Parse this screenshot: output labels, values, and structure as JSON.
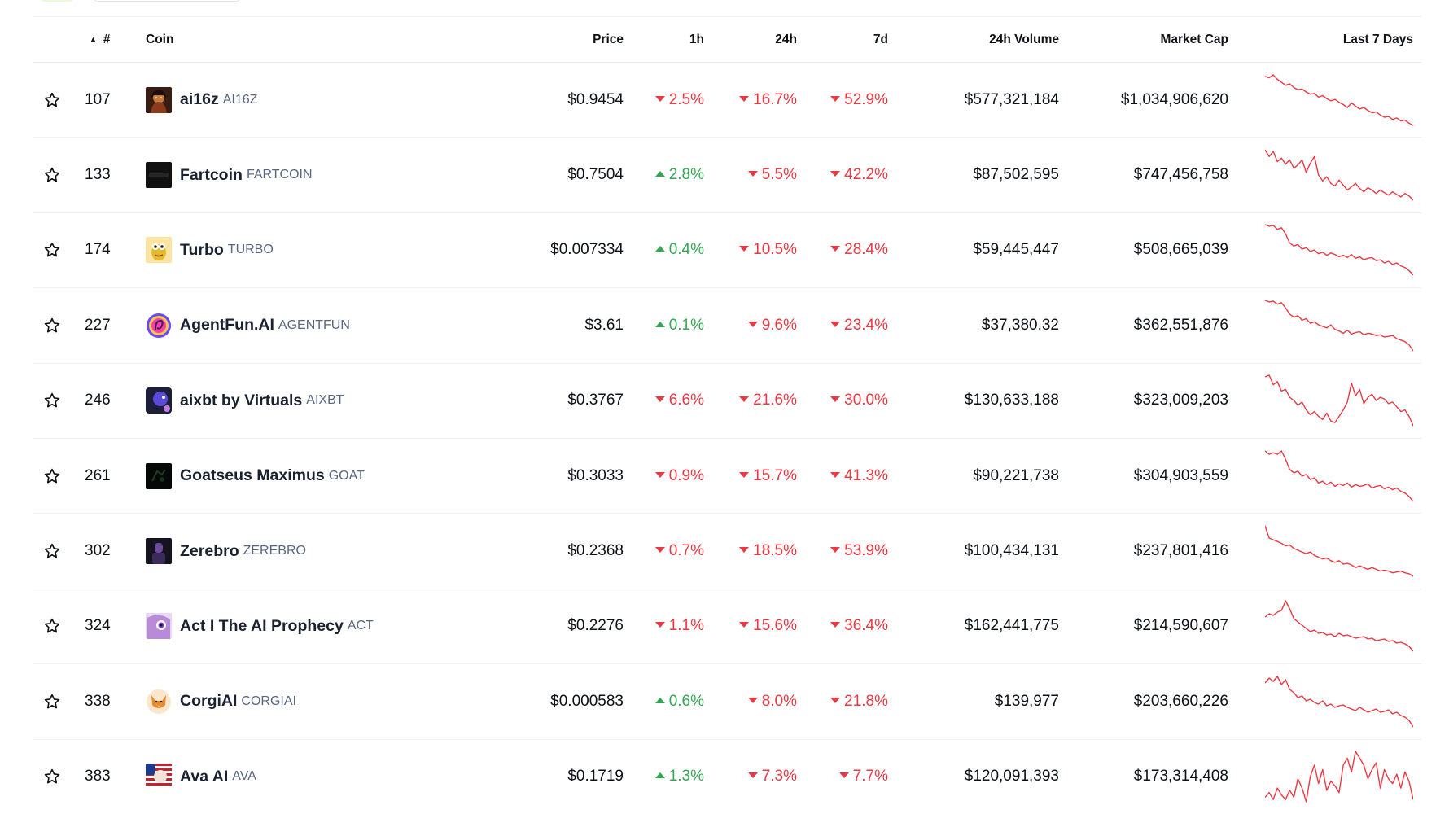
{
  "table": {
    "headers": {
      "rank": "#",
      "coin": "Coin",
      "price": "Price",
      "h1": "1h",
      "h24": "24h",
      "d7": "7d",
      "volume": "24h Volume",
      "market_cap": "Market Cap",
      "spark": "Last 7 Days"
    },
    "rows": [
      {
        "rank": "107",
        "name": "ai16z",
        "symbol": "AI16Z",
        "price": "$0.9454",
        "h1": "2.5%",
        "h1_dir": "down",
        "h24": "16.7%",
        "h24_dir": "down",
        "d7": "52.9%",
        "d7_dir": "down",
        "volume": "$577,321,184",
        "market_cap": "$1,034,906,620",
        "logo_icon": "ai16z-logo-icon",
        "spark": [
          62,
          64,
          60,
          66,
          70,
          74,
          72,
          77,
          80,
          79,
          83,
          86,
          85,
          90,
          88,
          92,
          95,
          93,
          97,
          100,
          104,
          98,
          102,
          106,
          104,
          108,
          111,
          110,
          114,
          117,
          116,
          120,
          118,
          122,
          121,
          125,
          128
        ]
      },
      {
        "rank": "133",
        "name": "Fartcoin",
        "symbol": "FARTCOIN",
        "price": "$0.7504",
        "h1": "2.8%",
        "h1_dir": "up",
        "h24": "5.5%",
        "h24_dir": "down",
        "d7": "42.2%",
        "d7_dir": "down",
        "volume": "$87,502,595",
        "market_cap": "$747,456,758",
        "logo_icon": "fartcoin-logo-icon",
        "spark": [
          58,
          66,
          60,
          72,
          68,
          75,
          70,
          80,
          76,
          70,
          85,
          74,
          66,
          88,
          95,
          90,
          98,
          101,
          94,
          100,
          106,
          102,
          98,
          104,
          108,
          103,
          106,
          110,
          106,
          109,
          112,
          108,
          111,
          114,
          110,
          113,
          118
        ]
      },
      {
        "rank": "174",
        "name": "Turbo",
        "symbol": "TURBO",
        "price": "$0.007334",
        "h1": "0.4%",
        "h1_dir": "up",
        "h24": "10.5%",
        "h24_dir": "down",
        "d7": "28.4%",
        "d7_dir": "down",
        "volume": "$59,445,447",
        "market_cap": "$508,665,039",
        "logo_icon": "turbo-logo-icon",
        "spark": [
          60,
          62,
          61,
          66,
          64,
          72,
          84,
          88,
          86,
          92,
          90,
          95,
          93,
          98,
          96,
          100,
          97,
          99,
          102,
          100,
          103,
          99,
          104,
          102,
          106,
          104,
          103,
          107,
          106,
          110,
          108,
          112,
          110,
          114,
          116,
          120,
          126
        ]
      },
      {
        "rank": "227",
        "name": "AgentFun.AI",
        "symbol": "AGENTFUN",
        "price": "$3.61",
        "h1": "0.1%",
        "h1_dir": "up",
        "h24": "9.6%",
        "h24_dir": "down",
        "d7": "23.4%",
        "d7_dir": "down",
        "volume": "$37,380.32",
        "market_cap": "$362,551,876",
        "logo_icon": "agentfun-logo-icon",
        "spark": [
          60,
          62,
          61,
          65,
          63,
          70,
          78,
          82,
          80,
          86,
          84,
          90,
          88,
          92,
          94,
          96,
          92,
          98,
          100,
          103,
          99,
          104,
          102,
          101,
          105,
          103,
          104,
          106,
          105,
          108,
          107,
          106,
          110,
          112,
          114,
          118,
          126
        ]
      },
      {
        "rank": "246",
        "name": "aixbt by Virtuals",
        "symbol": "AIXBT",
        "price": "$0.3767",
        "h1": "6.6%",
        "h1_dir": "down",
        "h24": "21.6%",
        "h24_dir": "down",
        "d7": "30.0%",
        "d7_dir": "down",
        "volume": "$130,633,188",
        "market_cap": "$323,009,203",
        "logo_icon": "aixbt-logo-icon",
        "spark": [
          62,
          60,
          72,
          68,
          80,
          78,
          88,
          92,
          98,
          94,
          104,
          110,
          106,
          112,
          116,
          108,
          118,
          120,
          112,
          104,
          94,
          70,
          86,
          78,
          96,
          88,
          84,
          92,
          88,
          90,
          96,
          94,
          100,
          106,
          104,
          112,
          124
        ]
      },
      {
        "rank": "261",
        "name": "Goatseus Maximus",
        "symbol": "GOAT",
        "price": "$0.3033",
        "h1": "0.9%",
        "h1_dir": "down",
        "h24": "15.7%",
        "h24_dir": "down",
        "d7": "41.3%",
        "d7_dir": "down",
        "volume": "$90,221,738",
        "market_cap": "$304,903,559",
        "logo_icon": "goat-logo-icon",
        "spark": [
          62,
          66,
          64,
          66,
          62,
          72,
          84,
          88,
          86,
          92,
          90,
          96,
          94,
          100,
          98,
          102,
          99,
          104,
          101,
          103,
          100,
          105,
          102,
          104,
          103,
          101,
          106,
          104,
          103,
          107,
          105,
          108,
          106,
          110,
          112,
          116,
          122
        ]
      },
      {
        "rank": "302",
        "name": "Zerebro",
        "symbol": "ZEREBRO",
        "price": "$0.2368",
        "h1": "0.7%",
        "h1_dir": "down",
        "h24": "18.5%",
        "h24_dir": "down",
        "d7": "53.9%",
        "d7_dir": "down",
        "volume": "$100,434,131",
        "market_cap": "$237,801,416",
        "logo_icon": "zerebro-logo-icon",
        "spark": [
          56,
          70,
          72,
          74,
          76,
          79,
          78,
          82,
          84,
          86,
          88,
          86,
          90,
          92,
          94,
          93,
          96,
          98,
          96,
          100,
          99,
          101,
          104,
          102,
          104,
          106,
          104,
          106,
          108,
          107,
          108,
          110,
          109,
          108,
          110,
          111,
          114
        ]
      },
      {
        "rank": "324",
        "name": "Act I The AI Prophecy",
        "symbol": "ACT",
        "price": "$0.2276",
        "h1": "1.1%",
        "h1_dir": "down",
        "h24": "15.6%",
        "h24_dir": "down",
        "d7": "36.4%",
        "d7_dir": "down",
        "volume": "$162,441,775",
        "market_cap": "$214,590,607",
        "logo_icon": "act-logo-icon",
        "spark": [
          80,
          76,
          78,
          74,
          72,
          60,
          70,
          82,
          86,
          90,
          94,
          98,
          96,
          100,
          99,
          102,
          101,
          104,
          100,
          103,
          102,
          104,
          106,
          105,
          104,
          107,
          106,
          109,
          108,
          107,
          110,
          109,
          112,
          111,
          113,
          116,
          122
        ]
      },
      {
        "rank": "338",
        "name": "CorgiAI",
        "symbol": "CORGIAI",
        "price": "$0.000583",
        "h1": "0.6%",
        "h1_dir": "up",
        "h24": "8.0%",
        "h24_dir": "down",
        "d7": "21.8%",
        "d7_dir": "down",
        "volume": "$139,977",
        "market_cap": "$203,660,226",
        "logo_icon": "corgiai-logo-icon",
        "spark": [
          68,
          62,
          66,
          60,
          70,
          64,
          76,
          80,
          86,
          84,
          90,
          88,
          92,
          94,
          90,
          96,
          94,
          98,
          96,
          95,
          98,
          100,
          102,
          98,
          101,
          104,
          102,
          100,
          104,
          103,
          101,
          106,
          104,
          108,
          110,
          114,
          122
        ]
      },
      {
        "rank": "383",
        "name": "Ava AI",
        "symbol": "AVA",
        "price": "$0.1719",
        "h1": "1.3%",
        "h1_dir": "up",
        "h24": "7.3%",
        "h24_dir": "down",
        "d7": "7.7%",
        "d7_dir": "down",
        "volume": "$120,091,393",
        "market_cap": "$173,314,408",
        "logo_icon": "ava-logo-icon",
        "spark": [
          104,
          100,
          106,
          96,
          102,
          106,
          98,
          104,
          88,
          96,
          108,
          86,
          76,
          92,
          80,
          98,
          90,
          94,
          100,
          76,
          70,
          82,
          64,
          70,
          76,
          88,
          80,
          74,
          96,
          80,
          88,
          92,
          84,
          96,
          82,
          90,
          106
        ]
      }
    ]
  },
  "colors": {
    "up": "#32a852",
    "down": "#ea3943",
    "spark_line": "#ea3943"
  }
}
